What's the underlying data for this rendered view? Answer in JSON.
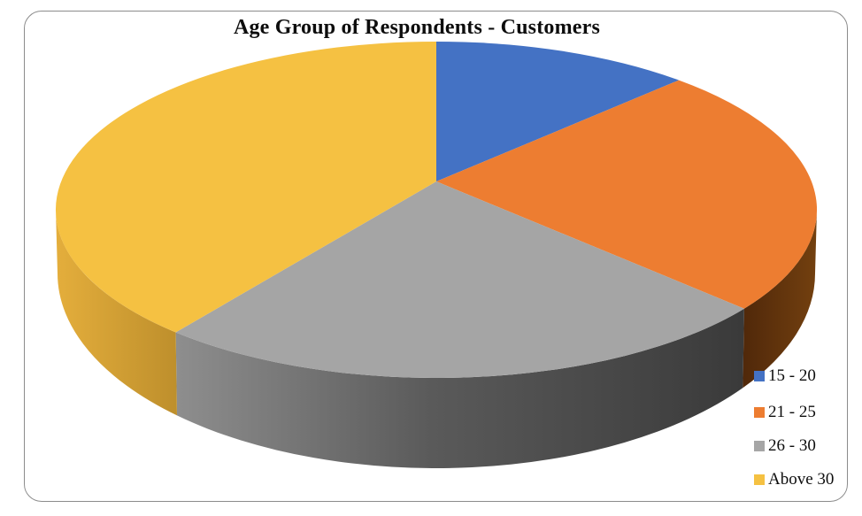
{
  "chart_data": {
    "type": "pie",
    "style": "3d",
    "title": "Age Group of Respondents - Customers",
    "categories": [
      "15 - 20",
      "21 - 25",
      "26 - 30",
      "Above 30"
    ],
    "values": [
      11,
      24,
      27,
      38
    ],
    "values_note": "percent shares estimated from slice angles; no data labels are shown in the chart",
    "colors": [
      "#4472C4",
      "#ED7D31",
      "#A5A5A5",
      "#F5C142"
    ],
    "wall_gradients": {
      "21 - 25": [
        [
          "0",
          "#50280A"
        ],
        [
          "1",
          "#73400F"
        ]
      ],
      "26 - 30": [
        [
          "0",
          "#8E8E8E"
        ],
        [
          "0.45",
          "#5A5A5A"
        ],
        [
          "1",
          "#3A3A3A"
        ]
      ],
      "Above 30": [
        [
          "0",
          "#E4AE3C"
        ],
        [
          "1",
          "#BE8F2C"
        ]
      ]
    },
    "start_angle_deg": 0,
    "direction": "clockwise",
    "legend_position": "bottom-right",
    "frame": {
      "border_color": "#8C8C8C",
      "rounded": true
    }
  },
  "legend": {
    "items": [
      {
        "label": "15 - 20",
        "color": "#4472C4"
      },
      {
        "label": "21 - 25",
        "color": "#ED7D31"
      },
      {
        "label": "26 - 30",
        "color": "#A6A6A6"
      },
      {
        "label": "Above 30",
        "color": "#F5C142"
      }
    ]
  }
}
